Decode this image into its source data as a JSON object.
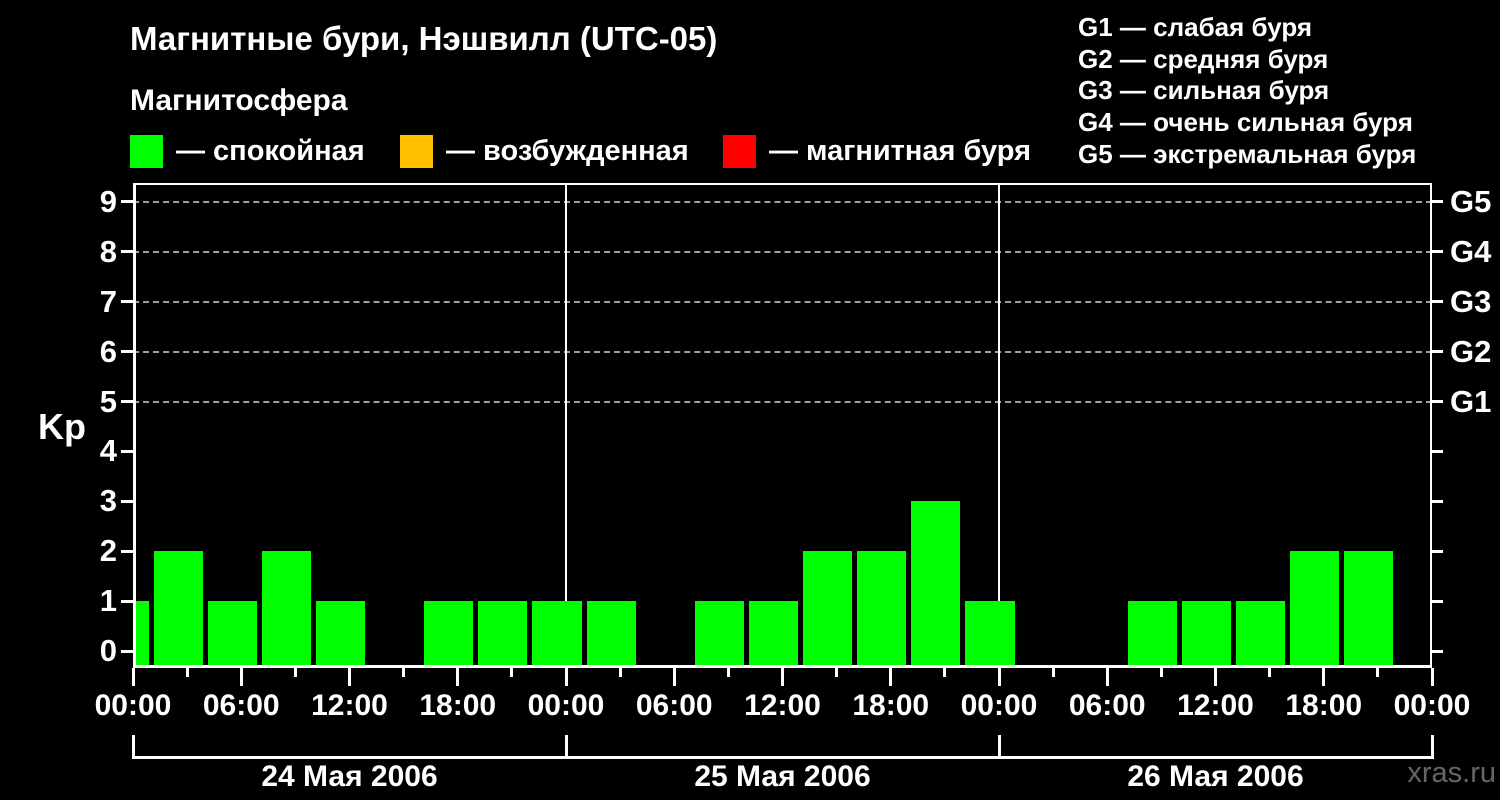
{
  "header": {
    "title": "Магнитные бури, Нэшвилл (UTC-05)",
    "subtitle": "Магнитосфера"
  },
  "legend": {
    "items": [
      {
        "name": "quiet",
        "label": "— спокойная",
        "color": "#00ff00"
      },
      {
        "name": "excited",
        "label": "— возбужденная",
        "color": "#ffc000"
      },
      {
        "name": "storm",
        "label": "— магнитная буря",
        "color": "#ff0000"
      }
    ]
  },
  "storm_scale_legend": {
    "items": [
      "G1 — слабая буря",
      "G2 — средняя буря",
      "G3 — сильная буря",
      "G4 — очень сильная буря",
      "G5 — экстремальная буря"
    ]
  },
  "watermark": "xras.ru",
  "chart_data": {
    "type": "bar",
    "title": "Магнитные бури, Нэшвилл (UTC-05)",
    "ylabel": "Kp",
    "ylim": [
      0,
      9
    ],
    "y_ticks": [
      0,
      1,
      2,
      3,
      4,
      5,
      6,
      7,
      8,
      9
    ],
    "grid_levels": [
      5,
      6,
      7,
      8,
      9
    ],
    "right_axis": [
      {
        "kp": 5,
        "label": "G1"
      },
      {
        "kp": 6,
        "label": "G2"
      },
      {
        "kp": 7,
        "label": "G3"
      },
      {
        "kp": 8,
        "label": "G4"
      },
      {
        "kp": 9,
        "label": "G5"
      }
    ],
    "x_hours_total": 72,
    "bar_interval_hours": 3,
    "bar_start_offset_hours": -2,
    "kp_values": [
      1,
      2,
      1,
      2,
      1,
      0,
      1,
      1,
      1,
      1,
      0,
      1,
      1,
      2,
      2,
      3,
      1,
      0,
      0,
      1,
      1,
      1,
      2,
      2,
      0
    ],
    "x_tick_step_hours": 3,
    "x_label_step_hours": 6,
    "x_tick_labels": [
      "00:00",
      "06:00",
      "12:00",
      "18:00",
      "00:00",
      "06:00",
      "12:00",
      "18:00",
      "00:00",
      "06:00",
      "12:00",
      "18:00",
      "00:00"
    ],
    "day_labels": [
      "24 Мая 2006",
      "25 Мая 2006",
      "26 Мая 2006"
    ],
    "bar_colors": {
      "quiet": "#00ff00",
      "excited": "#ffc000",
      "storm": "#ff0000"
    },
    "color_thresholds": {
      "quiet_max_kp": 3,
      "excited_max_kp": 4
    },
    "grid": "dashed horizontal at G-storm levels only",
    "legend_position": "top"
  }
}
